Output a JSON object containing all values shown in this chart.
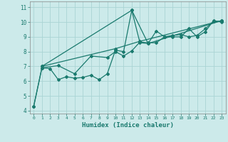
{
  "xlabel": "Humidex (Indice chaleur)",
  "xlim": [
    -0.5,
    23.5
  ],
  "ylim": [
    3.8,
    11.4
  ],
  "xticks": [
    0,
    1,
    2,
    3,
    4,
    5,
    6,
    7,
    8,
    9,
    10,
    11,
    12,
    13,
    14,
    15,
    16,
    17,
    18,
    19,
    20,
    21,
    22,
    23
  ],
  "yticks": [
    4,
    5,
    6,
    7,
    8,
    9,
    10,
    11
  ],
  "bg_color": "#cceaea",
  "line_color": "#1a7a6e",
  "grid_color": "#aad4d4",
  "series": [
    {
      "x": [
        0,
        1,
        2,
        3,
        4,
        5,
        6,
        7,
        8,
        9,
        10,
        11,
        12,
        13,
        14,
        15,
        16,
        17,
        18,
        19,
        20,
        21,
        22,
        23
      ],
      "y": [
        4.3,
        6.9,
        6.85,
        6.1,
        6.3,
        6.2,
        6.25,
        6.4,
        6.1,
        6.5,
        8.1,
        8.0,
        10.8,
        8.6,
        8.55,
        9.4,
        9.0,
        9.0,
        9.0,
        9.55,
        9.0,
        9.35,
        10.1,
        10.0
      ]
    },
    {
      "x": [
        0,
        1,
        3,
        5,
        7,
        9,
        10,
        11,
        12,
        13,
        14,
        15,
        16,
        17,
        18,
        19,
        20,
        21,
        22,
        23
      ],
      "y": [
        4.3,
        6.9,
        7.05,
        6.5,
        7.7,
        7.6,
        8.0,
        7.7,
        8.05,
        8.65,
        8.6,
        8.6,
        9.0,
        9.1,
        9.15,
        9.0,
        9.1,
        9.55,
        10.05,
        10.05
      ]
    },
    {
      "x": [
        1,
        10,
        13,
        23
      ],
      "y": [
        7.0,
        8.2,
        8.7,
        10.1
      ]
    },
    {
      "x": [
        1,
        12,
        14,
        23
      ],
      "y": [
        7.0,
        10.8,
        8.55,
        10.1
      ]
    }
  ]
}
